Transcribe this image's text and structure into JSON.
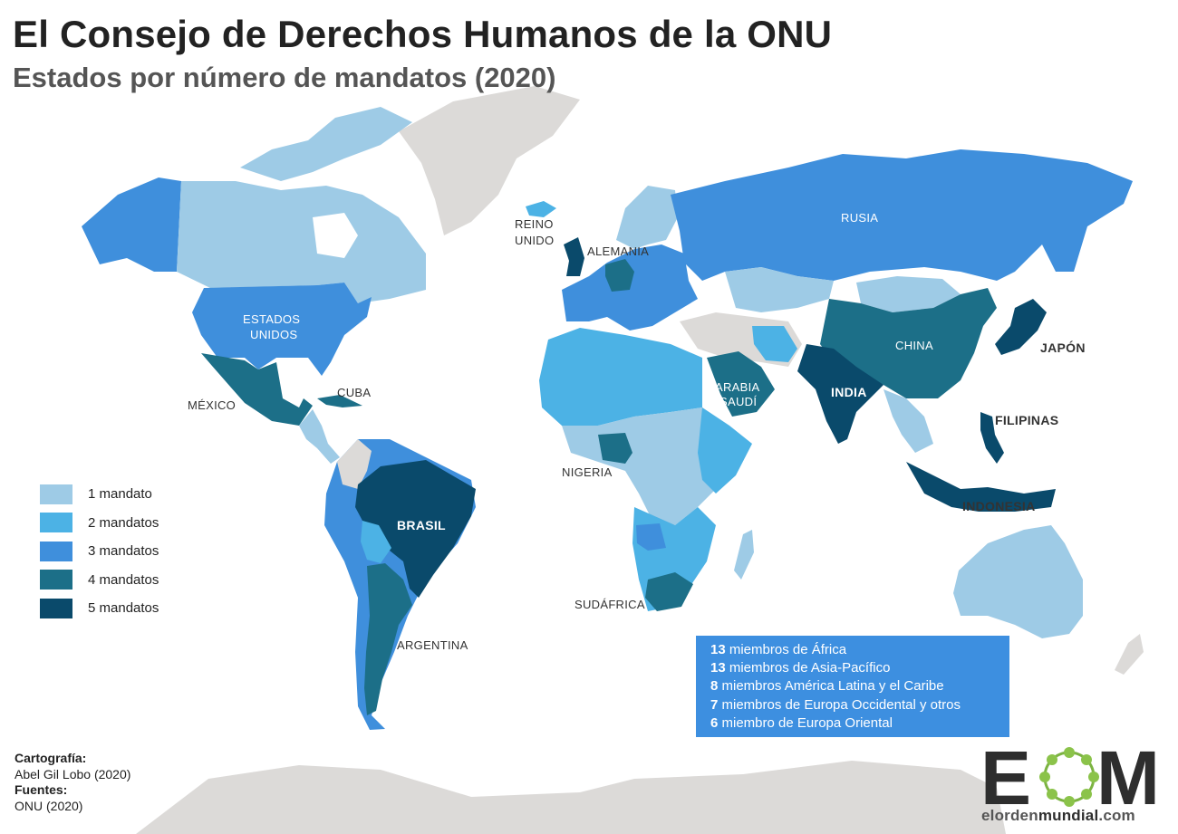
{
  "title": "El Consejo de Derechos Humanos de la ONU",
  "subtitle": "Estados por número de mandatos (2020)",
  "colors": {
    "none": "#dcdad8",
    "m1": "#9ecbe6",
    "m2": "#4cb2e5",
    "m3": "#3f8fdc",
    "m4": "#1c6f88",
    "m5": "#0a4a6b",
    "stats_box": "#3d8fe0"
  },
  "legend": [
    {
      "label": "1 mandato",
      "level": 1
    },
    {
      "label": "2 mandatos",
      "level": 2
    },
    {
      "label": "3 mandatos",
      "level": 3
    },
    {
      "label": "4 mandatos",
      "level": 4
    },
    {
      "label": "5 mandatos",
      "level": 5
    }
  ],
  "countries": [
    {
      "name": "Alaska (EE.UU.)",
      "level": 3
    },
    {
      "name": "Canadá",
      "level": 1
    },
    {
      "name": "Groenlandia",
      "level": 0
    },
    {
      "name": "Estados Unidos",
      "level": 3
    },
    {
      "name": "México",
      "level": 4
    },
    {
      "name": "Cuba",
      "level": 4
    },
    {
      "name": "Brasil",
      "level": 5
    },
    {
      "name": "Argentina",
      "level": 4
    },
    {
      "name": "Chile",
      "level": 3
    },
    {
      "name": "Perú",
      "level": 3
    },
    {
      "name": "Bolivia",
      "level": 2
    },
    {
      "name": "Venezuela",
      "level": 3
    },
    {
      "name": "Reino Unido",
      "level": 5
    },
    {
      "name": "Alemania",
      "level": 4
    },
    {
      "name": "Rusia",
      "level": 3
    },
    {
      "name": "China",
      "level": 4
    },
    {
      "name": "India",
      "level": 5
    },
    {
      "name": "Japón",
      "level": 5
    },
    {
      "name": "Arabia Saudí",
      "level": 4
    },
    {
      "name": "Nigeria",
      "level": 4
    },
    {
      "name": "Sudáfrica",
      "level": 4
    },
    {
      "name": "Filipinas",
      "level": 5
    },
    {
      "name": "Indonesia",
      "level": 5
    },
    {
      "name": "Australia",
      "level": 1
    },
    {
      "name": "Angola",
      "level": 3
    },
    {
      "name": "Etiopía",
      "level": 2
    },
    {
      "name": "Egipto",
      "level": 2
    }
  ],
  "labels": {
    "reino_unido_1": "REINO",
    "reino_unido_2": "UNIDO",
    "alemania": "ALEMANIA",
    "rusia": "RUSIA",
    "estados_unidos_1": "ESTADOS",
    "estados_unidos_2": "UNIDOS",
    "china": "CHINA",
    "japon": "JAPÓN",
    "cuba": "CUBA",
    "mexico": "MÉXICO",
    "arabia_1": "ARABIA",
    "arabia_2": "SAUDÍ",
    "india": "INDIA",
    "filipinas": "FILIPINAS",
    "nigeria": "NIGERIA",
    "indonesia": "INDONESIA",
    "brasil": "BRASIL",
    "sudafrica": "SUDÁFRICA",
    "argentina": "ARGENTINA"
  },
  "stats": [
    {
      "count": "13",
      "text": " miembros de África"
    },
    {
      "count": "13",
      "text": " miembros de Asia-Pacífico"
    },
    {
      "count": "8",
      "text": " miembros América Latina y el Caribe"
    },
    {
      "count": "7",
      "text": " miembros de Europa Occidental y otros"
    },
    {
      "count": "6",
      "text": " miembro de Europa Oriental"
    }
  ],
  "credits": {
    "cartography_heading": "Cartografía:",
    "cartography_value": "Abel Gil Lobo (2020)",
    "sources_heading": "Fuentes:",
    "sources_value": "ONU (2020)"
  },
  "logo": {
    "letter_left": "E",
    "letter_right": "M",
    "url_part1": "elorden",
    "url_part2": "mundial",
    "url_part3": ".com"
  }
}
